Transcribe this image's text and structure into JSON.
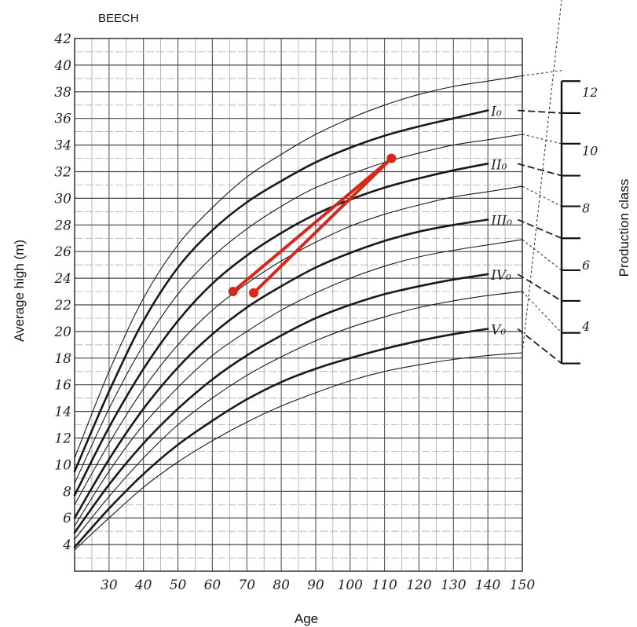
{
  "chart_data": {
    "type": "line",
    "title": "BEECH",
    "xlabel": "Age",
    "ylabel": "Average high  (m)",
    "right_label": "Production class",
    "xlim": [
      20,
      150
    ],
    "ylim": [
      2,
      42
    ],
    "x_ticks": [
      30,
      40,
      50,
      60,
      70,
      80,
      90,
      100,
      110,
      120,
      130,
      140,
      150
    ],
    "y_ticks": [
      4,
      6,
      8,
      10,
      12,
      14,
      16,
      18,
      20,
      22,
      24,
      26,
      28,
      30,
      32,
      34,
      36,
      38,
      40,
      42
    ],
    "grid": true,
    "series": [
      {
        "name": "",
        "weight": "thin",
        "points": [
          [
            20,
            10.5
          ],
          [
            30,
            17
          ],
          [
            40,
            22.5
          ],
          [
            50,
            26.5
          ],
          [
            60,
            29.3
          ],
          [
            70,
            31.6
          ],
          [
            80,
            33.3
          ],
          [
            90,
            34.8
          ],
          [
            100,
            36
          ],
          [
            110,
            37
          ],
          [
            120,
            37.8
          ],
          [
            130,
            38.4
          ],
          [
            140,
            38.8
          ],
          [
            150,
            39.2
          ]
        ]
      },
      {
        "name": "I₀",
        "weight": "bold",
        "points": [
          [
            20,
            9.5
          ],
          [
            30,
            15.5
          ],
          [
            40,
            20.8
          ],
          [
            50,
            24.8
          ],
          [
            60,
            27.6
          ],
          [
            70,
            29.7
          ],
          [
            80,
            31.3
          ],
          [
            90,
            32.7
          ],
          [
            100,
            33.8
          ],
          [
            110,
            34.7
          ],
          [
            120,
            35.4
          ],
          [
            130,
            36
          ],
          [
            140,
            36.6
          ]
        ]
      },
      {
        "name": "",
        "weight": "thin",
        "points": [
          [
            20,
            8.6
          ],
          [
            30,
            14.2
          ],
          [
            40,
            19
          ],
          [
            50,
            22.8
          ],
          [
            60,
            25.6
          ],
          [
            70,
            27.7
          ],
          [
            80,
            29.4
          ],
          [
            90,
            30.8
          ],
          [
            100,
            31.8
          ],
          [
            110,
            32.7
          ],
          [
            120,
            33.4
          ],
          [
            130,
            34
          ],
          [
            140,
            34.4
          ],
          [
            150,
            34.8
          ]
        ]
      },
      {
        "name": "II₀",
        "weight": "bold",
        "points": [
          [
            20,
            7.7
          ],
          [
            30,
            12.8
          ],
          [
            40,
            17.2
          ],
          [
            50,
            20.8
          ],
          [
            60,
            23.6
          ],
          [
            70,
            25.7
          ],
          [
            80,
            27.4
          ],
          [
            90,
            28.8
          ],
          [
            100,
            29.9
          ],
          [
            110,
            30.8
          ],
          [
            120,
            31.5
          ],
          [
            130,
            32.1
          ],
          [
            140,
            32.6
          ]
        ]
      },
      {
        "name": "",
        "weight": "thin",
        "points": [
          [
            20,
            7
          ],
          [
            30,
            11.6
          ],
          [
            40,
            15.7
          ],
          [
            50,
            19
          ],
          [
            60,
            21.6
          ],
          [
            70,
            23.6
          ],
          [
            80,
            25.3
          ],
          [
            90,
            26.7
          ],
          [
            100,
            27.9
          ],
          [
            110,
            28.8
          ],
          [
            120,
            29.5
          ],
          [
            130,
            30.1
          ],
          [
            140,
            30.5
          ],
          [
            150,
            30.9
          ]
        ]
      },
      {
        "name": "III₀",
        "weight": "bold",
        "points": [
          [
            20,
            6
          ],
          [
            30,
            10.4
          ],
          [
            40,
            14.2
          ],
          [
            50,
            17.3
          ],
          [
            60,
            19.8
          ],
          [
            70,
            21.8
          ],
          [
            80,
            23.4
          ],
          [
            90,
            24.8
          ],
          [
            100,
            25.9
          ],
          [
            110,
            26.8
          ],
          [
            120,
            27.5
          ],
          [
            130,
            28
          ],
          [
            140,
            28.4
          ]
        ]
      },
      {
        "name": "",
        "weight": "thin",
        "points": [
          [
            20,
            5.4
          ],
          [
            30,
            9.5
          ],
          [
            40,
            13
          ],
          [
            50,
            15.8
          ],
          [
            60,
            18.2
          ],
          [
            70,
            20
          ],
          [
            80,
            21.6
          ],
          [
            90,
            22.9
          ],
          [
            100,
            24
          ],
          [
            110,
            24.9
          ],
          [
            120,
            25.6
          ],
          [
            130,
            26.1
          ],
          [
            140,
            26.5
          ],
          [
            150,
            26.9
          ]
        ]
      },
      {
        "name": "IV₀",
        "weight": "bold",
        "points": [
          [
            20,
            4.9
          ],
          [
            30,
            8.5
          ],
          [
            40,
            11.6
          ],
          [
            50,
            14.2
          ],
          [
            60,
            16.4
          ],
          [
            70,
            18.2
          ],
          [
            80,
            19.7
          ],
          [
            90,
            21
          ],
          [
            100,
            22
          ],
          [
            110,
            22.8
          ],
          [
            120,
            23.4
          ],
          [
            130,
            23.9
          ],
          [
            140,
            24.3
          ]
        ]
      },
      {
        "name": "",
        "weight": "thin",
        "points": [
          [
            20,
            4.4
          ],
          [
            30,
            7.6
          ],
          [
            40,
            10.5
          ],
          [
            50,
            13
          ],
          [
            60,
            15
          ],
          [
            70,
            16.7
          ],
          [
            80,
            18.1
          ],
          [
            90,
            19.3
          ],
          [
            100,
            20.3
          ],
          [
            110,
            21.1
          ],
          [
            120,
            21.8
          ],
          [
            130,
            22.3
          ],
          [
            140,
            22.7
          ],
          [
            150,
            23
          ]
        ]
      },
      {
        "name": "V₀",
        "weight": "bold",
        "points": [
          [
            20,
            3.8
          ],
          [
            30,
            6.7
          ],
          [
            40,
            9.3
          ],
          [
            50,
            11.5
          ],
          [
            60,
            13.3
          ],
          [
            70,
            14.9
          ],
          [
            80,
            16.2
          ],
          [
            90,
            17.2
          ],
          [
            100,
            18
          ],
          [
            110,
            18.7
          ],
          [
            120,
            19.3
          ],
          [
            130,
            19.8
          ],
          [
            140,
            20.2
          ]
        ]
      },
      {
        "name": "",
        "weight": "thin",
        "points": [
          [
            20,
            3.6
          ],
          [
            30,
            6
          ],
          [
            40,
            8.3
          ],
          [
            50,
            10.2
          ],
          [
            60,
            11.8
          ],
          [
            70,
            13.2
          ],
          [
            80,
            14.4
          ],
          [
            90,
            15.4
          ],
          [
            100,
            16.3
          ],
          [
            110,
            17
          ],
          [
            120,
            17.5
          ],
          [
            130,
            17.9
          ],
          [
            140,
            18.2
          ],
          [
            150,
            18.4
          ]
        ]
      }
    ],
    "production_class_scale": {
      "labels": [
        "12",
        "10",
        "8",
        "6",
        "4"
      ],
      "label_heights": [
        38,
        33.6,
        29.3,
        25,
        20.4
      ],
      "tick_heights": [
        38.8,
        36.4,
        34.1,
        31.7,
        29.4,
        27,
        24.6,
        22.3,
        19.9,
        17.6
      ],
      "extension_targets": [
        39.6,
        36.4,
        34.1,
        31.7,
        29.4,
        27,
        24.6,
        22.3,
        19.9,
        17.6
      ]
    },
    "annotations": {
      "color": "#d42a1c",
      "markers": [
        [
          112,
          33
        ],
        [
          66,
          23
        ],
        [
          72,
          22.9
        ]
      ],
      "segments": [
        [
          [
            66,
            23
          ],
          [
            112,
            33
          ]
        ],
        [
          [
            72,
            22.9
          ],
          [
            112,
            33
          ]
        ]
      ]
    }
  }
}
